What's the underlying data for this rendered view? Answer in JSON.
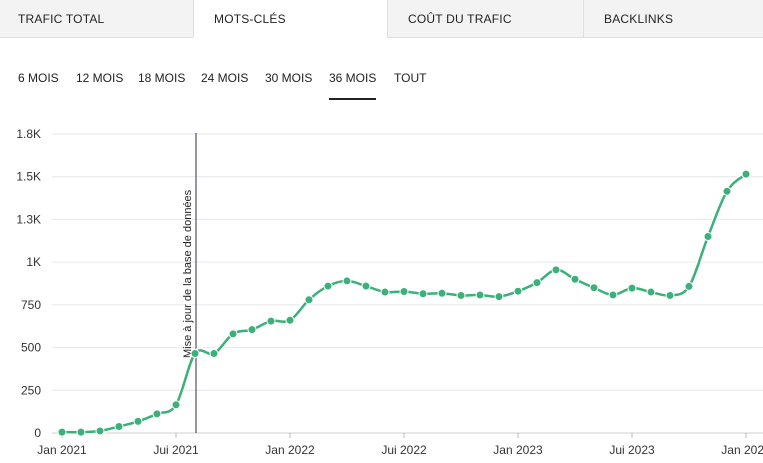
{
  "tabs": [
    {
      "label": "TRAFIC TOTAL",
      "active": false
    },
    {
      "label": "MOTS-CLÉS",
      "active": true
    },
    {
      "label": "COÛT DU TRAFIC",
      "active": false
    },
    {
      "label": "BACKLINKS",
      "active": false
    }
  ],
  "ranges": [
    {
      "label": "6 MOIS",
      "active": false
    },
    {
      "label": "12 MOIS",
      "active": false
    },
    {
      "label": "18 MOIS",
      "active": false
    },
    {
      "label": "24 MOIS",
      "active": false
    },
    {
      "label": "30 MOIS",
      "active": false
    },
    {
      "label": "36 MOIS",
      "active": true
    },
    {
      "label": "TOUT",
      "active": false
    }
  ],
  "chart_data": {
    "type": "line",
    "title": "",
    "xlabel": "",
    "ylabel": "",
    "series_color": "#3bb07a",
    "grid": true,
    "y_ticks": [
      {
        "value": 0,
        "label": "0"
      },
      {
        "value": 250,
        "label": "250"
      },
      {
        "value": 500,
        "label": "500"
      },
      {
        "value": 750,
        "label": "750"
      },
      {
        "value": 1000,
        "label": "1K"
      },
      {
        "value": 1250,
        "label": "1.3K"
      },
      {
        "value": 1500,
        "label": "1.5K"
      },
      {
        "value": 1750,
        "label": "1.8K"
      }
    ],
    "ylim": [
      0,
      1750
    ],
    "xlim": [
      "2021-01",
      "2024-01"
    ],
    "x_ticks": [
      {
        "value": "2021-01",
        "label": "Jan 2021"
      },
      {
        "value": "2021-07",
        "label": "Jui 2021"
      },
      {
        "value": "2022-01",
        "label": "Jan 2022"
      },
      {
        "value": "2022-07",
        "label": "Jui 2022"
      },
      {
        "value": "2023-01",
        "label": "Jan 2023"
      },
      {
        "value": "2023-07",
        "label": "Jui 2023"
      },
      {
        "value": "2024-01",
        "label": "Jan 2024"
      }
    ],
    "points": [
      {
        "x": "2021-01",
        "y": 5
      },
      {
        "x": "2021-02",
        "y": 5
      },
      {
        "x": "2021-03",
        "y": 12
      },
      {
        "x": "2021-04",
        "y": 38
      },
      {
        "x": "2021-05",
        "y": 68
      },
      {
        "x": "2021-06",
        "y": 112
      },
      {
        "x": "2021-07",
        "y": 165
      },
      {
        "x": "2021-08",
        "y": 465
      },
      {
        "x": "2021-09",
        "y": 465
      },
      {
        "x": "2021-10",
        "y": 580
      },
      {
        "x": "2021-11",
        "y": 605
      },
      {
        "x": "2021-12",
        "y": 655
      },
      {
        "x": "2022-01",
        "y": 660
      },
      {
        "x": "2022-02",
        "y": 780
      },
      {
        "x": "2022-03",
        "y": 860
      },
      {
        "x": "2022-04",
        "y": 890
      },
      {
        "x": "2022-05",
        "y": 860
      },
      {
        "x": "2022-06",
        "y": 825
      },
      {
        "x": "2022-07",
        "y": 828
      },
      {
        "x": "2022-08",
        "y": 815
      },
      {
        "x": "2022-09",
        "y": 818
      },
      {
        "x": "2022-10",
        "y": 805
      },
      {
        "x": "2022-11",
        "y": 808
      },
      {
        "x": "2022-12",
        "y": 798
      },
      {
        "x": "2023-01",
        "y": 830
      },
      {
        "x": "2023-02",
        "y": 880
      },
      {
        "x": "2023-03",
        "y": 955
      },
      {
        "x": "2023-04",
        "y": 900
      },
      {
        "x": "2023-05",
        "y": 850
      },
      {
        "x": "2023-06",
        "y": 808
      },
      {
        "x": "2023-07",
        "y": 848
      },
      {
        "x": "2023-08",
        "y": 825
      },
      {
        "x": "2023-09",
        "y": 805
      },
      {
        "x": "2023-10",
        "y": 858
      },
      {
        "x": "2023-11",
        "y": 1150
      },
      {
        "x": "2023-12",
        "y": 1415
      },
      {
        "x": "2024-01",
        "y": 1515
      }
    ],
    "annotation": {
      "x": "2021-08",
      "label": "Mise à jour de la base de données"
    }
  }
}
